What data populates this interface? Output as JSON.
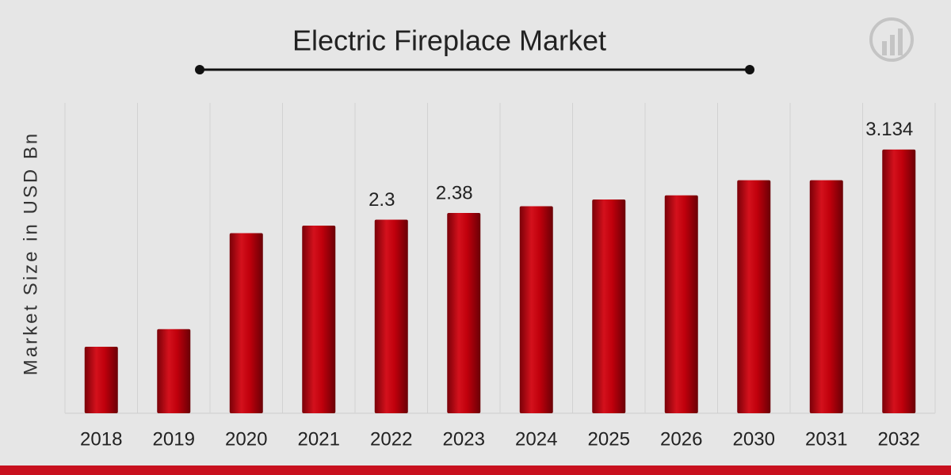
{
  "chart_data": {
    "type": "bar",
    "title": "Electric Fireplace Market",
    "y_label": "Market Size in USD Bn",
    "categories": [
      "2018",
      "2019",
      "2020",
      "2021",
      "2022",
      "2023",
      "2024",
      "2025",
      "2026",
      "2030",
      "2031",
      "2032"
    ],
    "values": [
      0.79,
      1.0,
      2.14,
      2.23,
      2.3,
      2.38,
      2.46,
      2.54,
      2.59,
      2.77,
      2.77,
      3.134
    ],
    "value_label_shown": [
      false,
      false,
      false,
      false,
      true,
      true,
      false,
      false,
      false,
      false,
      false,
      true
    ],
    "color": "#c0000c",
    "ylim": [
      0,
      3.5
    ],
    "grid": true
  }
}
